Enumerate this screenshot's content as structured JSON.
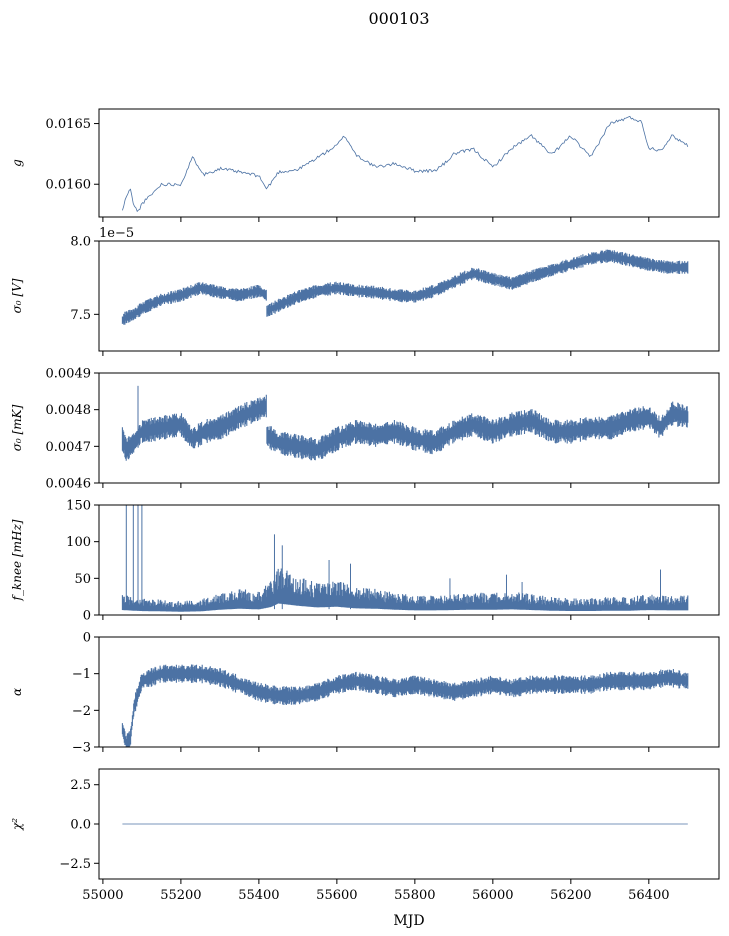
{
  "figure": {
    "title": "000103",
    "x_axis_label": "MJD"
  },
  "colors": {
    "series": "#4c72a4",
    "axes": "#000000",
    "background": "#ffffff"
  },
  "x_axis": {
    "range": [
      54990,
      56580
    ],
    "ticks": [
      55000,
      55200,
      55400,
      55600,
      55800,
      56000,
      56200,
      56400
    ],
    "tick_labels": [
      "55000",
      "55200",
      "55400",
      "55600",
      "55800",
      "56000",
      "56200",
      "56400"
    ]
  },
  "chart_data": [
    {
      "type": "line",
      "panel": "g",
      "ylabel": "g",
      "ylim": [
        0.01573,
        0.01662
      ],
      "yticks": [
        0.016,
        0.0165
      ],
      "ytick_labels": [
        "0.0160",
        "0.0165"
      ],
      "offset_text": "",
      "x": [
        55050,
        55060,
        55070,
        55080,
        55090,
        55100,
        55120,
        55150,
        55200,
        55230,
        55260,
        55300,
        55350,
        55400,
        55420,
        55450,
        55500,
        55550,
        55600,
        55620,
        55650,
        55700,
        55750,
        55800,
        55850,
        55880,
        55900,
        55950,
        56000,
        56050,
        56100,
        56150,
        56200,
        56250,
        56300,
        56350,
        56380,
        56400,
        56430,
        56460,
        56500
      ],
      "y": [
        0.01578,
        0.0159,
        0.01596,
        0.01582,
        0.01577,
        0.01584,
        0.0159,
        0.016,
        0.016,
        0.01622,
        0.01608,
        0.01613,
        0.0161,
        0.01607,
        0.01596,
        0.0161,
        0.01612,
        0.01622,
        0.01632,
        0.0164,
        0.01624,
        0.01614,
        0.01617,
        0.01611,
        0.01611,
        0.01618,
        0.01625,
        0.01629,
        0.01614,
        0.0163,
        0.0164,
        0.01624,
        0.0164,
        0.01622,
        0.0165,
        0.01655,
        0.01652,
        0.0163,
        0.01628,
        0.0164,
        0.01632
      ]
    },
    {
      "type": "line",
      "panel": "sigma0_V",
      "ylabel": "σ₀ [V]",
      "ylim": [
        7.25,
        8.0
      ],
      "yticks": [
        7.5,
        8.0
      ],
      "ytick_labels": [
        "7.5",
        "8.0"
      ],
      "offset_text": "1e−5",
      "x": [
        55050,
        55060,
        55080,
        55100,
        55150,
        55200,
        55250,
        55300,
        55350,
        55400,
        55419,
        55420,
        55450,
        55500,
        55550,
        55600,
        55650,
        55700,
        55750,
        55800,
        55850,
        55900,
        55950,
        56000,
        56050,
        56100,
        56150,
        56200,
        56250,
        56300,
        56350,
        56400,
        56450,
        56500
      ],
      "y": [
        7.46,
        7.48,
        7.5,
        7.54,
        7.6,
        7.63,
        7.68,
        7.65,
        7.63,
        7.66,
        7.63,
        7.52,
        7.56,
        7.62,
        7.66,
        7.68,
        7.66,
        7.65,
        7.63,
        7.62,
        7.66,
        7.72,
        7.78,
        7.74,
        7.71,
        7.76,
        7.8,
        7.84,
        7.88,
        7.9,
        7.87,
        7.84,
        7.82,
        7.82
      ],
      "band": 0.03
    },
    {
      "type": "line",
      "panel": "sigma0_mK",
      "ylabel": "σ₀ [mK]",
      "ylim": [
        0.0046,
        0.0049
      ],
      "yticks": [
        0.0046,
        0.0047,
        0.0048,
        0.0049
      ],
      "ytick_labels": [
        "0.0046",
        "0.0047",
        "0.0048",
        "0.0049"
      ],
      "offset_text": "",
      "x": [
        55050,
        55060,
        55080,
        55100,
        55150,
        55200,
        55230,
        55260,
        55300,
        55350,
        55419,
        55420,
        55450,
        55500,
        55550,
        55600,
        55650,
        55700,
        55750,
        55800,
        55850,
        55900,
        55950,
        56000,
        56050,
        56100,
        56150,
        56200,
        56250,
        56300,
        56350,
        56400,
        56430,
        56460,
        56500
      ],
      "y": [
        0.00472,
        0.00469,
        0.00471,
        0.00474,
        0.00475,
        0.00476,
        0.00472,
        0.00474,
        0.00475,
        0.00478,
        0.00481,
        0.00473,
        0.00471,
        0.0047,
        0.00469,
        0.00472,
        0.00474,
        0.00473,
        0.00474,
        0.00472,
        0.00471,
        0.00474,
        0.00476,
        0.00474,
        0.00476,
        0.00477,
        0.00474,
        0.00474,
        0.00475,
        0.00475,
        0.00477,
        0.00478,
        0.00475,
        0.00479,
        0.00478
      ],
      "band": 2.2e-05,
      "spikes": [
        [
          55090,
          0.004865
        ]
      ]
    },
    {
      "type": "line",
      "panel": "fknee",
      "ylabel": "f_knee [mHz]",
      "ylim": [
        0,
        150
      ],
      "yticks": [
        0,
        50,
        100,
        150
      ],
      "ytick_labels": [
        "0",
        "50",
        "100",
        "150"
      ],
      "offset_text": "",
      "x": [
        55050,
        55080,
        55100,
        55150,
        55200,
        55250,
        55300,
        55350,
        55400,
        55430,
        55450,
        55500,
        55550,
        55600,
        55650,
        55700,
        55750,
        55800,
        55850,
        55900,
        55950,
        56000,
        56050,
        56100,
        56150,
        56200,
        56250,
        56300,
        56350,
        56400,
        56450,
        56500
      ],
      "y": [
        15,
        13,
        12,
        11,
        10,
        11,
        16,
        19,
        17,
        24,
        35,
        28,
        23,
        25,
        20,
        19,
        16,
        14,
        14,
        15,
        16,
        16,
        17,
        15,
        13,
        12,
        12,
        13,
        13,
        15,
        14,
        14
      ],
      "spikes": [
        [
          55078,
          150
        ],
        [
          55090,
          150
        ],
        [
          55100,
          150
        ],
        [
          55060,
          150
        ],
        [
          55440,
          110
        ],
        [
          55460,
          95
        ],
        [
          55580,
          75
        ],
        [
          55635,
          70
        ],
        [
          55890,
          50
        ],
        [
          56035,
          55
        ],
        [
          56075,
          45
        ],
        [
          56430,
          62
        ]
      ]
    },
    {
      "type": "line",
      "panel": "alpha",
      "ylabel": "α",
      "ylim": [
        -3,
        0
      ],
      "yticks": [
        -3,
        -2,
        -1,
        0
      ],
      "ytick_labels": [
        "−3",
        "−2",
        "−1",
        "0"
      ],
      "offset_text": "",
      "x": [
        55050,
        55060,
        55070,
        55080,
        55100,
        55150,
        55200,
        55250,
        55300,
        55350,
        55400,
        55450,
        55500,
        55550,
        55600,
        55650,
        55700,
        55750,
        55800,
        55850,
        55900,
        55950,
        56000,
        56050,
        56100,
        56150,
        56200,
        56250,
        56300,
        56350,
        56400,
        56450,
        56500
      ],
      "y": [
        -2.5,
        -2.9,
        -2.8,
        -1.9,
        -1.2,
        -1.0,
        -1.0,
        -1.0,
        -1.1,
        -1.3,
        -1.5,
        -1.6,
        -1.6,
        -1.5,
        -1.3,
        -1.2,
        -1.3,
        -1.4,
        -1.3,
        -1.4,
        -1.5,
        -1.4,
        -1.3,
        -1.4,
        -1.3,
        -1.3,
        -1.3,
        -1.3,
        -1.2,
        -1.2,
        -1.2,
        -1.1,
        -1.2
      ],
      "band": 0.17
    },
    {
      "type": "line",
      "panel": "chi2",
      "ylabel": "χ²",
      "ylim": [
        -3.5,
        3.5
      ],
      "yticks": [
        -2.5,
        0.0,
        2.5
      ],
      "ytick_labels": [
        "−2.5",
        "0.0",
        "2.5"
      ],
      "offset_text": "",
      "x": [
        55050,
        56500
      ],
      "y": [
        0,
        0
      ]
    }
  ]
}
